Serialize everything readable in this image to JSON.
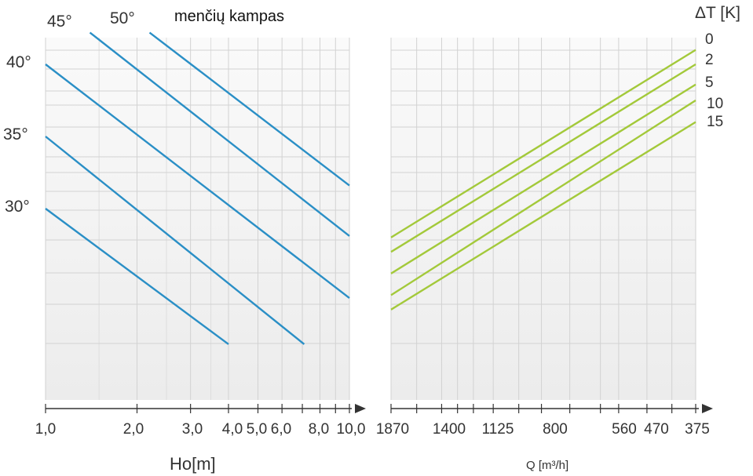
{
  "chart_data": [
    {
      "type": "line",
      "title": "menčių kampas",
      "xlabel": "Ho[m]",
      "ylabel": "",
      "x_scale": "log",
      "xlim": [
        1.0,
        10.0
      ],
      "grid": true,
      "x_ticks": [
        "1,0",
        "2,0",
        "3,0",
        "4,0",
        "5,0",
        "6,0",
        "8,0",
        "10,0"
      ],
      "series": [
        {
          "name": "30°",
          "points": [
            [
              1.0,
              30.0
            ],
            [
              4.0,
              20.6
            ]
          ]
        },
        {
          "name": "35°",
          "points": [
            [
              1.0,
              35.0
            ],
            [
              7.1,
              20.6
            ]
          ]
        },
        {
          "name": "40°",
          "points": [
            [
              1.0,
              40.0
            ],
            [
              10.0,
              23.8
            ]
          ]
        },
        {
          "name": "45°",
          "points": [
            [
              1.4,
              42.2
            ],
            [
              10.0,
              28.1
            ]
          ]
        },
        {
          "name": "50°",
          "points": [
            [
              2.2,
              42.2
            ],
            [
              10.0,
              31.6
            ]
          ]
        }
      ],
      "series_color": "#2a8fc6"
    },
    {
      "type": "line",
      "title": "",
      "xlabel": "Q [m³/h]",
      "x_scale": "reciprocal",
      "x_ticks": [
        "1870",
        "1400",
        "1125",
        "800",
        "560",
        "470",
        "375"
      ],
      "legend_title": "ΔT [K]",
      "grid": true,
      "series": [
        {
          "name": "0",
          "points": [
            [
              1870,
              28.0
            ],
            [
              375,
              41.0
            ]
          ]
        },
        {
          "name": "2",
          "points": [
            [
              1870,
              27.0
            ],
            [
              375,
              40.0
            ]
          ]
        },
        {
          "name": "5",
          "points": [
            [
              1870,
              25.5
            ],
            [
              375,
              38.6
            ]
          ]
        },
        {
          "name": "10",
          "points": [
            [
              1870,
              24.0
            ],
            [
              375,
              37.5
            ]
          ]
        },
        {
          "name": "15",
          "points": [
            [
              1870,
              23.0
            ],
            [
              375,
              36.0
            ]
          ]
        }
      ],
      "series_color": "#a3c93a"
    }
  ],
  "labels": {
    "angle_45": "45°",
    "angle_50": "50°",
    "angle_40": "40°",
    "angle_35": "35°",
    "angle_30": "30°",
    "title": "menčių kampas",
    "dt_title": "ΔT [K]",
    "dt_0": "0",
    "dt_2": "2",
    "dt_5": "5",
    "dt_10": "10",
    "dt_15": "15",
    "left_axis_title": "Ho[m]",
    "right_axis_title": "Q [m³/h]"
  }
}
